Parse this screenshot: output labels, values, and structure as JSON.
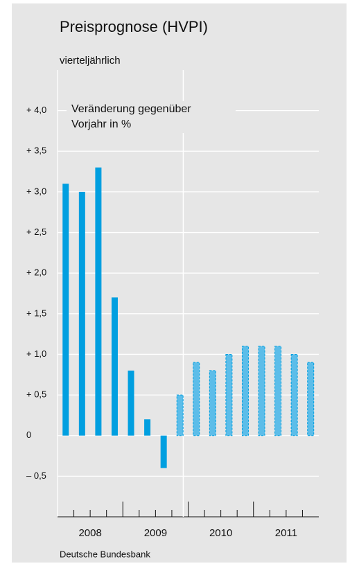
{
  "chart_data": {
    "type": "bar",
    "title": "Preisprognose (HVPI)",
    "subtitle": "vierteljährlich",
    "annotation": [
      "Veränderung gegenüber",
      "Vorjahr in %"
    ],
    "source": "Deutsche Bundesbank",
    "years": [
      "2008",
      "2009",
      "2010",
      "2011"
    ],
    "values": [
      3.1,
      3.0,
      3.3,
      1.7,
      0.8,
      0.2,
      -0.4,
      0.5,
      0.9,
      0.8,
      1.0,
      1.1,
      1.1,
      1.1,
      1.0,
      0.9
    ],
    "color": "#009fe0",
    "forecast_color": "#5cbde9",
    "forecast_from": 7,
    "ylim": [
      -1.0,
      4.5
    ],
    "yticks": [
      {
        "value": -0.5,
        "label": "– 0,5"
      },
      0,
      {
        "value": 0.5,
        "label": "+ 0,5"
      },
      {
        "value": 1.0,
        "label": "+ 1,0"
      },
      {
        "value": 1.5,
        "label": "+ 1,5"
      },
      {
        "value": 2.0,
        "label": "+ 2,0"
      },
      {
        "value": 2.5,
        "label": "+ 2,5"
      },
      {
        "value": 3.0,
        "label": "+ 3,0"
      },
      {
        "value": 3.5,
        "label": "+ 3,5"
      },
      {
        "value": 4.0,
        "label": "+ 4,0"
      }
    ],
    "grid": true
  }
}
